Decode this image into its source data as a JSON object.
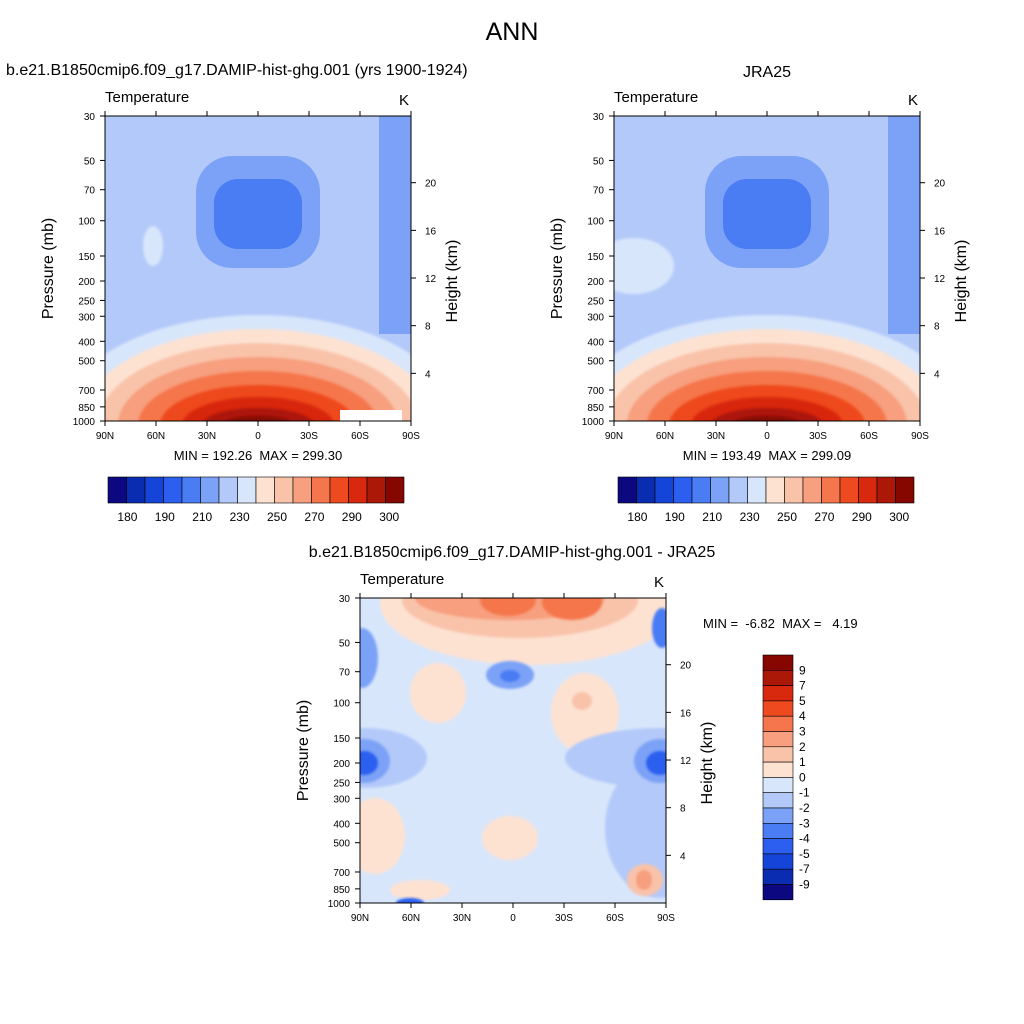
{
  "figure": {
    "title": "ANN"
  },
  "panels": [
    {
      "title": "b.e21.B1850cmip6.f09_g17.DAMIP-hist-ghg.001 (yrs 1900-1924)",
      "variable": "Temperature",
      "units": "K",
      "ylabel_left": "Pressure (mb)",
      "ylabel_right": "Height (km)",
      "stats": "MIN = 192.26  MAX = 299.30",
      "colorbar_labels": [
        "180",
        "190",
        "210",
        "230",
        "250",
        "270",
        "290",
        "300"
      ]
    },
    {
      "title": "JRA25",
      "variable": "Temperature",
      "units": "K",
      "ylabel_left": "Pressure (mb)",
      "ylabel_right": "Height (km)",
      "stats": "MIN = 193.49  MAX = 299.09",
      "colorbar_labels": [
        "180",
        "190",
        "210",
        "230",
        "250",
        "270",
        "290",
        "300"
      ]
    },
    {
      "title": "b.e21.B1850cmip6.f09_g17.DAMIP-hist-ghg.001 - JRA25",
      "variable": "Temperature",
      "units": "K",
      "ylabel_left": "Pressure (mb)",
      "ylabel_right": "Height (km)",
      "stats": "MIN =  -6.82  MAX =   4.19",
      "colorbar_labels": [
        "9",
        "7",
        "5",
        "4",
        "3",
        "2",
        "1",
        "0",
        "-1",
        "-2",
        "-3",
        "-4",
        "-5",
        "-7",
        "-9"
      ]
    }
  ],
  "chart_data": [
    {
      "type": "heatmap",
      "title": "b.e21.B1850cmip6.f09_g17.DAMIP-hist-ghg.001 (yrs 1900-1924)",
      "variable": "Temperature",
      "units": "K",
      "x_ticks": [
        "90N",
        "60N",
        "30N",
        "0",
        "30S",
        "60S",
        "90S"
      ],
      "y_ticks": [
        30,
        50,
        70,
        100,
        150,
        200,
        250,
        300,
        400,
        500,
        700,
        850,
        1000
      ],
      "height_ticks": [
        4,
        8,
        12,
        16,
        20
      ],
      "ylim": [
        1000,
        30
      ],
      "y_scale": "log",
      "min": 192.26,
      "max": 299.3,
      "levels": [
        180,
        185,
        190,
        200,
        210,
        220,
        230,
        240,
        250,
        260,
        270,
        280,
        290,
        295,
        300
      ],
      "colors": [
        "#0c0880",
        "#0a2cb0",
        "#1444d8",
        "#2c5ff0",
        "#4a7cf4",
        "#7ba2f7",
        "#b3c9f9",
        "#d8e6fb",
        "#fde2d2",
        "#f9c3aa",
        "#f79f7e",
        "#f5764c",
        "#ee4a1f",
        "#d8280e",
        "#ac1807",
        "#850700"
      ]
    },
    {
      "type": "heatmap",
      "title": "JRA25",
      "variable": "Temperature",
      "units": "K",
      "x_ticks": [
        "90N",
        "60N",
        "30N",
        "0",
        "30S",
        "60S",
        "90S"
      ],
      "y_ticks": [
        30,
        50,
        70,
        100,
        150,
        200,
        250,
        300,
        400,
        500,
        700,
        850,
        1000
      ],
      "height_ticks": [
        4,
        8,
        12,
        16,
        20
      ],
      "ylim": [
        1000,
        30
      ],
      "y_scale": "log",
      "min": 193.49,
      "max": 299.09,
      "levels": [
        180,
        185,
        190,
        200,
        210,
        220,
        230,
        240,
        250,
        260,
        270,
        280,
        290,
        295,
        300
      ],
      "colors": [
        "#0c0880",
        "#0a2cb0",
        "#1444d8",
        "#2c5ff0",
        "#4a7cf4",
        "#7ba2f7",
        "#b3c9f9",
        "#d8e6fb",
        "#fde2d2",
        "#f9c3aa",
        "#f79f7e",
        "#f5764c",
        "#ee4a1f",
        "#d8280e",
        "#ac1807",
        "#850700"
      ]
    },
    {
      "type": "heatmap",
      "title": "b.e21.B1850cmip6.f09_g17.DAMIP-hist-ghg.001 - JRA25",
      "variable": "Temperature",
      "units": "K",
      "x_ticks": [
        "90N",
        "60N",
        "30N",
        "0",
        "30S",
        "60S",
        "90S"
      ],
      "y_ticks": [
        30,
        50,
        70,
        100,
        150,
        200,
        250,
        300,
        400,
        500,
        700,
        850,
        1000
      ],
      "height_ticks": [
        4,
        8,
        12,
        16,
        20
      ],
      "ylim": [
        1000,
        30
      ],
      "y_scale": "log",
      "min": -6.82,
      "max": 4.19,
      "levels": [
        9,
        7,
        5,
        4,
        3,
        2,
        1,
        0,
        -1,
        -2,
        -3,
        -4,
        -5,
        -7,
        -9
      ],
      "colors": [
        "#850700",
        "#ac1807",
        "#d8280e",
        "#ee4a1f",
        "#f5764c",
        "#f79f7e",
        "#f9c3aa",
        "#fde2d2",
        "#d8e6fb",
        "#b3c9f9",
        "#7ba2f7",
        "#4a7cf4",
        "#2c5ff0",
        "#1444d8",
        "#0a2cb0",
        "#0c0880"
      ]
    }
  ]
}
